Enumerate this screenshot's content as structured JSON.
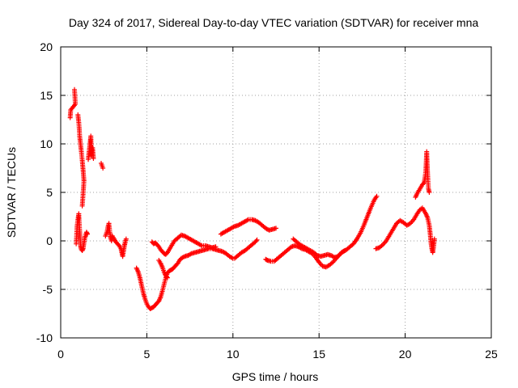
{
  "chart_data": {
    "type": "scatter",
    "title": "Day 324 of 2017, Sidereal Day-to-day VTEC variation (SDTVAR) for receiver mna",
    "xlabel": "GPS time / hours",
    "ylabel": "SDTVAR / TECUs",
    "xlim": [
      0,
      25
    ],
    "ylim": [
      -10,
      20
    ],
    "xticks": [
      "0",
      "5",
      "10",
      "15",
      "20",
      "25"
    ],
    "yticks": [
      "-10",
      "-5",
      "0",
      "5",
      "10",
      "15",
      "20"
    ],
    "grid": true,
    "marker": "+",
    "color": "#ff0000",
    "series": [
      {
        "name": "SDTVAR",
        "segments": [
          [
            [
              0.55,
              12.7
            ],
            [
              0.58,
              13.5
            ],
            [
              0.85,
              14.1
            ],
            [
              0.8,
              15.6
            ]
          ],
          [
            [
              0.9,
              -0.3
            ],
            [
              0.95,
              1.5
            ],
            [
              1.0,
              2.2
            ],
            [
              1.05,
              2.8
            ],
            [
              1.1,
              1.0
            ],
            [
              1.15,
              -0.5
            ],
            [
              1.2,
              -0.9
            ],
            [
              1.25,
              -1.0
            ],
            [
              1.3,
              -0.8
            ],
            [
              1.35,
              -0.2
            ],
            [
              1.4,
              0.3
            ],
            [
              1.45,
              0.6
            ],
            [
              1.5,
              0.9
            ],
            [
              1.55,
              0.7
            ]
          ],
          [
            [
              1.0,
              13.0
            ],
            [
              1.05,
              12.2
            ],
            [
              1.08,
              11.5
            ],
            [
              1.1,
              10.8
            ],
            [
              1.15,
              10.0
            ],
            [
              1.2,
              9.2
            ],
            [
              1.25,
              8.3
            ],
            [
              1.3,
              7.3
            ],
            [
              1.35,
              6.2
            ],
            [
              1.3,
              4.8
            ],
            [
              1.25,
              3.6
            ]
          ],
          [
            [
              1.6,
              8.4
            ],
            [
              1.65,
              9.2
            ],
            [
              1.7,
              10.0
            ],
            [
              1.75,
              10.8
            ],
            [
              1.8,
              8.8
            ],
            [
              1.85,
              9.6
            ],
            [
              1.9,
              8.5
            ]
          ],
          [
            [
              2.35,
              8.0
            ],
            [
              2.45,
              7.5
            ]
          ],
          [
            [
              2.6,
              0.5
            ],
            [
              2.7,
              1.0
            ],
            [
              2.75,
              1.5
            ],
            [
              2.8,
              1.8
            ],
            [
              2.85,
              0.9
            ],
            [
              2.9,
              0.3
            ],
            [
              2.95,
              0.0
            ],
            [
              3.0,
              0.5
            ],
            [
              3.1,
              0.2
            ],
            [
              3.2,
              -0.1
            ],
            [
              3.3,
              -0.3
            ],
            [
              3.4,
              -0.5
            ],
            [
              3.5,
              -0.8
            ],
            [
              3.55,
              -1.2
            ],
            [
              3.6,
              -1.6
            ],
            [
              3.7,
              -0.5
            ],
            [
              3.75,
              -0.1
            ],
            [
              3.8,
              0.2
            ]
          ],
          [
            [
              4.4,
              -2.8
            ],
            [
              4.5,
              -3.2
            ],
            [
              4.6,
              -3.8
            ],
            [
              4.7,
              -4.6
            ],
            [
              4.8,
              -5.4
            ],
            [
              4.9,
              -6.0
            ],
            [
              5.0,
              -6.5
            ],
            [
              5.1,
              -6.8
            ],
            [
              5.2,
              -7.0
            ],
            [
              5.3,
              -6.9
            ],
            [
              5.4,
              -6.8
            ],
            [
              5.5,
              -6.6
            ],
            [
              5.6,
              -6.4
            ],
            [
              5.7,
              -6.2
            ],
            [
              5.8,
              -5.8
            ],
            [
              5.9,
              -5.2
            ],
            [
              6.0,
              -4.5
            ],
            [
              6.1,
              -3.8
            ],
            [
              6.2,
              -3.3
            ],
            [
              6.3,
              -3.1
            ],
            [
              6.4,
              -3.0
            ],
            [
              6.5,
              -2.9
            ],
            [
              6.6,
              -2.7
            ],
            [
              6.7,
              -2.5
            ],
            [
              6.8,
              -2.3
            ],
            [
              6.9,
              -2.0
            ],
            [
              7.0,
              -1.8
            ],
            [
              7.2,
              -1.6
            ],
            [
              7.4,
              -1.5
            ],
            [
              7.6,
              -1.3
            ],
            [
              7.8,
              -1.2
            ],
            [
              8.0,
              -1.1
            ],
            [
              8.2,
              -1.0
            ],
            [
              8.4,
              -0.9
            ],
            [
              8.6,
              -0.8
            ],
            [
              8.8,
              -0.8
            ],
            [
              9.0,
              -0.9
            ],
            [
              9.2,
              -1.0
            ],
            [
              9.4,
              -1.1
            ],
            [
              9.6,
              -1.3
            ],
            [
              9.8,
              -1.6
            ],
            [
              10.0,
              -1.8
            ],
            [
              10.1,
              -1.8
            ],
            [
              10.3,
              -1.5
            ],
            [
              10.5,
              -1.2
            ],
            [
              10.7,
              -1.0
            ],
            [
              10.9,
              -0.7
            ],
            [
              11.1,
              -0.4
            ],
            [
              11.3,
              -0.1
            ],
            [
              11.4,
              0.1
            ]
          ],
          [
            [
              5.3,
              -0.1
            ],
            [
              5.4,
              -0.3
            ],
            [
              5.5,
              -0.2
            ],
            [
              5.6,
              -0.4
            ],
            [
              5.7,
              -0.6
            ],
            [
              5.8,
              -0.9
            ],
            [
              5.9,
              -1.1
            ],
            [
              6.0,
              -1.3
            ],
            [
              6.1,
              -1.4
            ],
            [
              6.2,
              -1.2
            ],
            [
              6.3,
              -0.9
            ],
            [
              6.4,
              -0.6
            ],
            [
              6.5,
              -0.3
            ],
            [
              6.6,
              0.0
            ],
            [
              6.8,
              0.3
            ],
            [
              7.0,
              0.6
            ],
            [
              7.2,
              0.5
            ],
            [
              7.4,
              0.3
            ],
            [
              7.6,
              0.1
            ],
            [
              7.8,
              -0.1
            ],
            [
              8.0,
              -0.3
            ],
            [
              8.2,
              -0.5
            ],
            [
              8.4,
              -0.5
            ],
            [
              8.6,
              -0.6
            ],
            [
              8.8,
              -0.7
            ],
            [
              9.0,
              -0.6
            ]
          ],
          [
            [
              5.7,
              -2.0
            ],
            [
              5.8,
              -2.3
            ],
            [
              5.9,
              -2.7
            ],
            [
              6.0,
              -3.2
            ],
            [
              6.1,
              -3.6
            ],
            [
              6.2,
              -3.8
            ]
          ],
          [
            [
              9.3,
              0.7
            ],
            [
              9.5,
              0.9
            ],
            [
              9.7,
              1.1
            ],
            [
              9.9,
              1.3
            ],
            [
              10.1,
              1.5
            ],
            [
              10.3,
              1.6
            ],
            [
              10.5,
              1.8
            ],
            [
              10.7,
              2.0
            ],
            [
              10.9,
              2.2
            ],
            [
              11.1,
              2.2
            ],
            [
              11.3,
              2.1
            ],
            [
              11.5,
              1.9
            ],
            [
              11.7,
              1.6
            ],
            [
              11.9,
              1.3
            ],
            [
              12.1,
              1.1
            ],
            [
              12.3,
              1.2
            ],
            [
              12.5,
              1.3
            ]
          ],
          [
            [
              11.9,
              -1.9
            ],
            [
              12.0,
              -2.0
            ],
            [
              12.2,
              -2.1
            ],
            [
              12.4,
              -2.1
            ],
            [
              12.6,
              -1.8
            ],
            [
              12.8,
              -1.5
            ],
            [
              13.0,
              -1.2
            ],
            [
              13.2,
              -0.9
            ],
            [
              13.4,
              -0.6
            ],
            [
              13.6,
              -0.5
            ],
            [
              13.8,
              -0.6
            ],
            [
              14.0,
              -0.8
            ],
            [
              14.2,
              -0.9
            ],
            [
              14.4,
              -1.1
            ],
            [
              14.6,
              -1.3
            ],
            [
              14.8,
              -1.7
            ],
            [
              15.0,
              -2.2
            ],
            [
              15.2,
              -2.6
            ],
            [
              15.4,
              -2.7
            ],
            [
              15.6,
              -2.5
            ],
            [
              15.8,
              -2.2
            ],
            [
              16.0,
              -1.8
            ],
            [
              16.2,
              -1.4
            ],
            [
              16.4,
              -1.1
            ],
            [
              16.6,
              -0.9
            ],
            [
              16.8,
              -0.6
            ],
            [
              17.0,
              -0.3
            ],
            [
              17.2,
              0.2
            ],
            [
              17.4,
              0.8
            ],
            [
              17.6,
              1.6
            ],
            [
              17.8,
              2.5
            ],
            [
              18.0,
              3.4
            ],
            [
              18.2,
              4.2
            ],
            [
              18.35,
              4.6
            ]
          ],
          [
            [
              13.5,
              0.2
            ],
            [
              13.7,
              -0.1
            ],
            [
              13.9,
              -0.4
            ],
            [
              14.1,
              -0.6
            ],
            [
              14.3,
              -0.8
            ],
            [
              14.5,
              -1.0
            ],
            [
              14.7,
              -1.2
            ],
            [
              14.9,
              -1.5
            ],
            [
              15.1,
              -1.6
            ],
            [
              15.3,
              -1.5
            ],
            [
              15.5,
              -1.4
            ],
            [
              15.7,
              -1.5
            ],
            [
              15.9,
              -1.7
            ],
            [
              16.1,
              -1.6
            ],
            [
              16.3,
              -1.2
            ],
            [
              16.5,
              -1.0
            ]
          ],
          [
            [
              18.3,
              -0.8
            ],
            [
              18.5,
              -0.7
            ],
            [
              18.7,
              -0.4
            ],
            [
              18.9,
              0.0
            ],
            [
              19.1,
              0.6
            ],
            [
              19.3,
              1.2
            ],
            [
              19.5,
              1.8
            ],
            [
              19.7,
              2.1
            ],
            [
              19.9,
              1.9
            ],
            [
              20.1,
              1.6
            ],
            [
              20.3,
              1.8
            ],
            [
              20.5,
              2.2
            ],
            [
              20.7,
              2.8
            ],
            [
              20.85,
              3.2
            ],
            [
              21.0,
              3.4
            ],
            [
              21.1,
              3.1
            ],
            [
              21.2,
              2.8
            ],
            [
              21.3,
              2.4
            ],
            [
              21.4,
              1.6
            ],
            [
              21.45,
              0.8
            ],
            [
              21.5,
              -0.2
            ],
            [
              21.55,
              -0.8
            ],
            [
              21.6,
              -1.2
            ],
            [
              21.65,
              -0.6
            ],
            [
              21.7,
              0.2
            ]
          ],
          [
            [
              20.6,
              4.5
            ],
            [
              20.7,
              4.9
            ],
            [
              20.8,
              5.2
            ],
            [
              20.9,
              5.5
            ],
            [
              21.0,
              5.8
            ],
            [
              21.1,
              6.0
            ],
            [
              21.15,
              6.5
            ],
            [
              21.2,
              7.2
            ],
            [
              21.22,
              8.0
            ],
            [
              21.25,
              9.2
            ],
            [
              21.3,
              7.0
            ],
            [
              21.35,
              5.4
            ],
            [
              21.4,
              5.0
            ]
          ]
        ]
      }
    ]
  }
}
